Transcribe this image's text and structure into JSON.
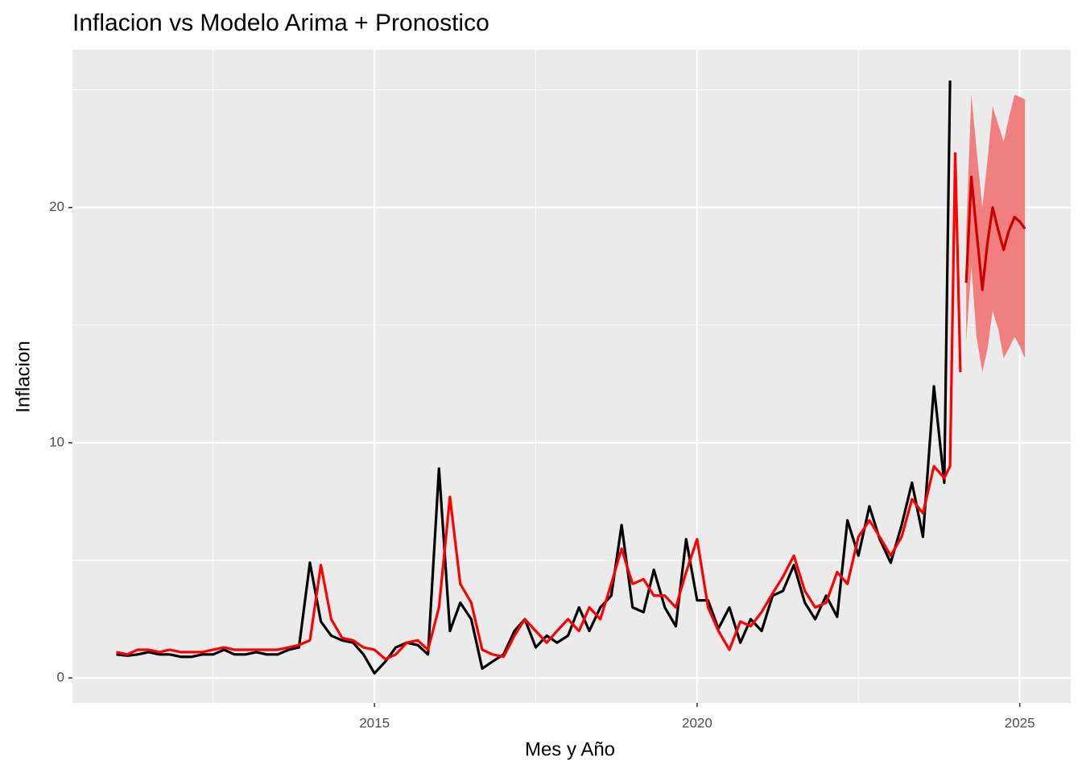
{
  "chart_data": {
    "type": "line",
    "title": "Inflacion vs Modelo Arima + Pronostico",
    "x_label": "Mes y Año",
    "y_label": "Inflacion",
    "xlim": [
      2010.32,
      2025.79
    ],
    "ylim": [
      -1.06,
      26.7
    ],
    "xticks": [
      2015,
      2020,
      2025
    ],
    "yticks": [
      0,
      10,
      20
    ],
    "x_minor_grid": [
      2012.5,
      2017.5,
      2022.5
    ],
    "y_minor_grid": [
      5,
      15,
      25
    ],
    "grid": true,
    "x": [
      2011,
      2011.17,
      2011.33,
      2011.5,
      2011.67,
      2011.83,
      2012,
      2012.17,
      2012.33,
      2012.5,
      2012.67,
      2012.83,
      2013,
      2013.17,
      2013.33,
      2013.5,
      2013.67,
      2013.83,
      2014,
      2014.17,
      2014.33,
      2014.5,
      2014.67,
      2014.83,
      2015,
      2015.17,
      2015.33,
      2015.5,
      2015.67,
      2015.83,
      2016,
      2016.17,
      2016.33,
      2016.5,
      2016.67,
      2016.83,
      2017,
      2017.17,
      2017.33,
      2017.5,
      2017.67,
      2017.83,
      2018,
      2018.17,
      2018.33,
      2018.5,
      2018.67,
      2018.83,
      2019,
      2019.17,
      2019.33,
      2019.5,
      2019.67,
      2019.83,
      2020,
      2020.17,
      2020.33,
      2020.5,
      2020.67,
      2020.83,
      2021,
      2021.17,
      2021.33,
      2021.5,
      2021.67,
      2021.83,
      2022,
      2022.17,
      2022.33,
      2022.5,
      2022.67,
      2022.83,
      2023,
      2023.17,
      2023.33,
      2023.5,
      2023.67,
      2023.83,
      2023.92,
      2024,
      2024.08
    ],
    "series": [
      {
        "color": "#000000",
        "values": [
          1.0,
          0.95,
          1.0,
          1.1,
          1.0,
          1.0,
          0.9,
          0.9,
          1.0,
          1.0,
          1.2,
          1.0,
          1.0,
          1.1,
          1.0,
          1.0,
          1.2,
          1.3,
          4.9,
          2.4,
          1.8,
          1.6,
          1.5,
          1.0,
          0.2,
          0.7,
          1.3,
          1.5,
          1.4,
          1.0,
          8.9,
          2.0,
          3.2,
          2.5,
          0.4,
          0.7,
          1.0,
          2.0,
          2.5,
          1.3,
          1.8,
          1.5,
          1.8,
          3.0,
          2.0,
          3.0,
          3.5,
          6.5,
          3.0,
          2.8,
          4.6,
          3.0,
          2.2,
          5.9,
          3.3,
          3.3,
          2.1,
          3.0,
          1.5,
          2.5,
          2.0,
          3.5,
          3.7,
          4.8,
          3.2,
          2.5,
          3.5,
          2.6,
          6.7,
          5.2,
          7.3,
          5.9,
          4.9,
          6.5,
          8.3,
          6.0,
          12.4,
          8.3,
          25.4,
          null,
          null
        ]
      },
      {
        "color": "#ff0000",
        "values": [
          1.1,
          1.0,
          1.2,
          1.2,
          1.1,
          1.2,
          1.1,
          1.1,
          1.1,
          1.2,
          1.3,
          1.2,
          1.2,
          1.2,
          1.2,
          1.2,
          1.3,
          1.4,
          1.6,
          4.8,
          2.5,
          1.7,
          1.6,
          1.3,
          1.2,
          0.8,
          1.0,
          1.5,
          1.6,
          1.2,
          3.0,
          7.7,
          4.0,
          3.2,
          1.2,
          1.0,
          0.9,
          1.8,
          2.5,
          2.0,
          1.5,
          2.0,
          2.5,
          2.0,
          3.0,
          2.5,
          4.0,
          5.5,
          4.0,
          4.2,
          3.5,
          3.5,
          3.0,
          4.5,
          5.9,
          3.0,
          2.0,
          1.2,
          2.4,
          2.2,
          2.8,
          3.6,
          4.3,
          5.2,
          3.7,
          3.0,
          3.2,
          4.5,
          4.0,
          6.0,
          6.7,
          6.0,
          5.2,
          6.0,
          7.6,
          7.0,
          9.0,
          8.5,
          9.0,
          22.3,
          13.0
        ]
      },
      {
        "color": "#cc0000",
        "band_color": "#f08080",
        "x": [
          2024.17,
          2024.25,
          2024.33,
          2024.42,
          2024.5,
          2024.58,
          2024.67,
          2024.75,
          2024.83,
          2024.92,
          2025,
          2025.08
        ],
        "values": [
          16.8,
          21.3,
          19.0,
          16.5,
          18.5,
          20.0,
          19.0,
          18.2,
          19.0,
          19.6,
          19.4,
          19.1
        ],
        "lower": [
          14.3,
          17.5,
          14.5,
          13.0,
          14.0,
          15.6,
          14.8,
          13.6,
          14.0,
          14.5,
          14.1,
          13.6
        ],
        "upper": [
          19.0,
          24.8,
          22.5,
          20.0,
          22.0,
          24.3,
          23.5,
          22.8,
          23.8,
          24.8,
          24.7,
          24.6
        ]
      }
    ]
  }
}
